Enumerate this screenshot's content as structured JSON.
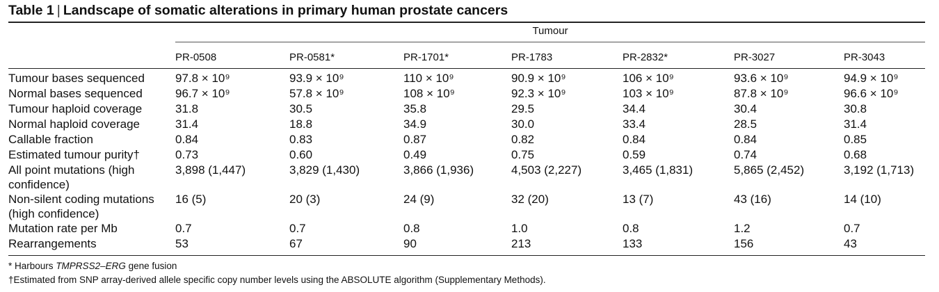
{
  "title": {
    "label": "Table 1",
    "separator": "|",
    "text": "Landscape of somatic alterations in primary human prostate cancers"
  },
  "span_header": "Tumour",
  "columns": [
    "PR-0508",
    "PR-0581*",
    "PR-1701*",
    "PR-1783",
    "PR-2832*",
    "PR-3027",
    "PR-3043"
  ],
  "rows": [
    {
      "label": [
        "Tumour bases sequenced"
      ],
      "values": [
        "97.8 × 10⁹",
        "93.9 × 10⁹",
        "110 × 10⁹",
        "90.9 × 10⁹",
        "106 × 10⁹",
        "93.6 × 10⁹",
        "94.9 × 10⁹"
      ]
    },
    {
      "label": [
        "Normal bases sequenced"
      ],
      "values": [
        "96.7 × 10⁹",
        "57.8 × 10⁹",
        "108 × 10⁹",
        "92.3 × 10⁹",
        "103 × 10⁹",
        "87.8 × 10⁹",
        "96.6 × 10⁹"
      ]
    },
    {
      "label": [
        "Tumour haploid coverage"
      ],
      "values": [
        "31.8",
        "30.5",
        "35.8",
        "29.5",
        "34.4",
        "30.4",
        "30.8"
      ]
    },
    {
      "label": [
        "Normal haploid coverage"
      ],
      "values": [
        "31.4",
        "18.8",
        "34.9",
        "30.0",
        "33.4",
        "28.5",
        "31.4"
      ]
    },
    {
      "label": [
        "Callable fraction"
      ],
      "values": [
        "0.84",
        "0.83",
        "0.87",
        "0.82",
        "0.84",
        "0.84",
        "0.85"
      ]
    },
    {
      "label": [
        "Estimated tumour purity†"
      ],
      "values": [
        "0.73",
        "0.60",
        "0.49",
        "0.75",
        "0.59",
        "0.74",
        "0.68"
      ]
    },
    {
      "label": [
        "All point mutations (high",
        "confidence)"
      ],
      "values": [
        "3,898 (1,447)",
        "3,829 (1,430)",
        "3,866 (1,936)",
        "4,503 (2,227)",
        "3,465 (1,831)",
        "5,865 (2,452)",
        "3,192 (1,713)"
      ]
    },
    {
      "label": [
        "Non-silent coding mutations",
        "(high confidence)"
      ],
      "values": [
        "16 (5)",
        "20 (3)",
        "24 (9)",
        "32 (20)",
        "13 (7)",
        "43 (16)",
        "14 (10)"
      ]
    },
    {
      "label": [
        "Mutation rate per Mb"
      ],
      "values": [
        "0.7",
        "0.7",
        "0.8",
        "1.0",
        "0.8",
        "1.2",
        "0.7"
      ]
    },
    {
      "label": [
        "Rearrangements"
      ],
      "values": [
        "53",
        "67",
        "90",
        "213",
        "133",
        "156",
        "43"
      ]
    }
  ],
  "footnotes": {
    "note1": {
      "mark": "*",
      "prefix": "Harbours ",
      "italic": "TMPRSS2–ERG",
      "suffix": " gene fusion"
    },
    "note2": "†Estimated from SNP array-derived allele specific copy number levels using the ABSOLUTE algorithm (Supplementary Methods)."
  }
}
